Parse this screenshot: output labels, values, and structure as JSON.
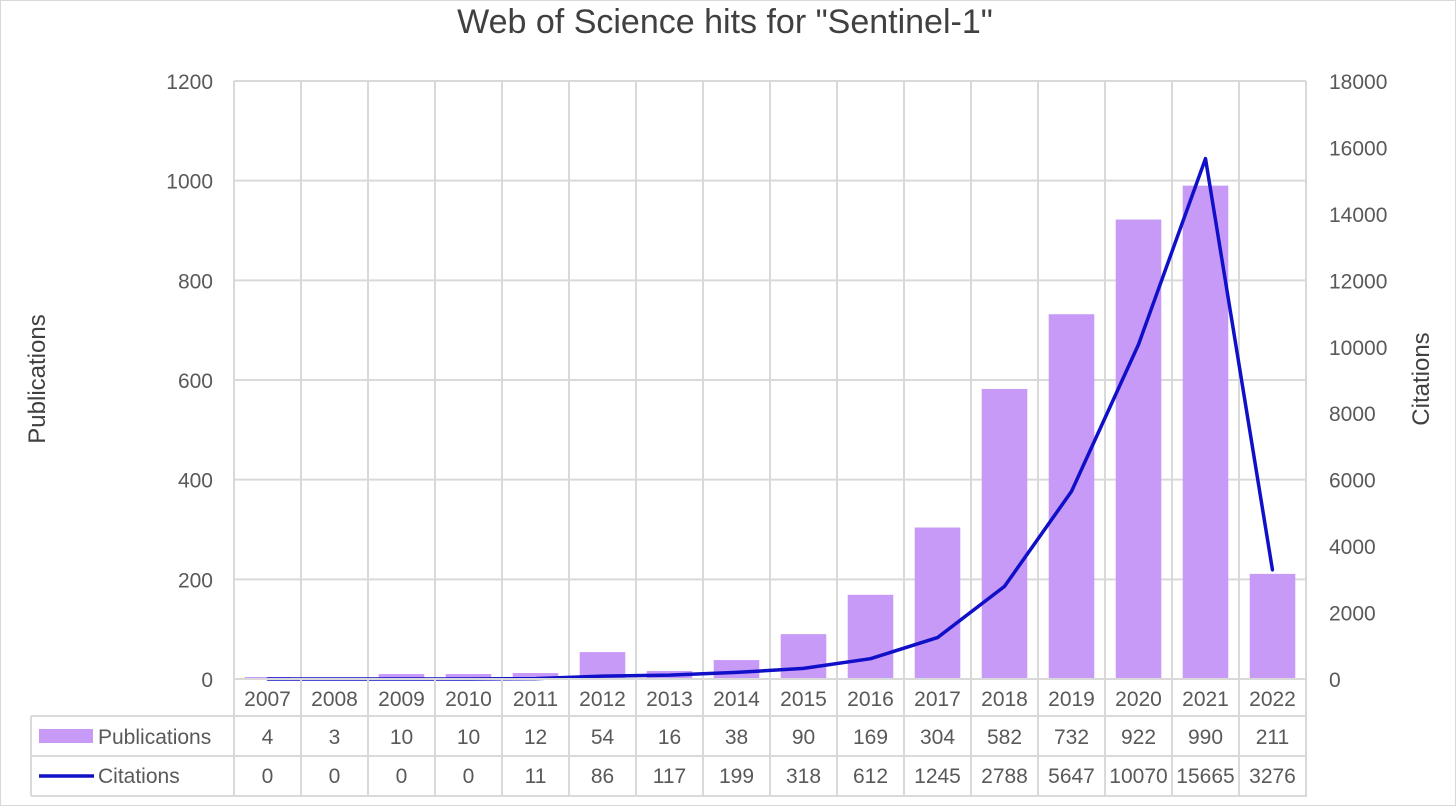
{
  "chart_data": {
    "type": "bar",
    "title": "Web of Science hits for \"Sentinel-1\"",
    "xlabel": "",
    "ylabel": "Publications",
    "y2label": "Citations",
    "ylim": [
      0,
      1200
    ],
    "y2lim": [
      0,
      18000
    ],
    "yticks": [
      "0",
      "200",
      "400",
      "600",
      "800",
      "1000",
      "1200"
    ],
    "y2ticks": [
      "0",
      "2000",
      "4000",
      "6000",
      "8000",
      "10000",
      "12000",
      "14000",
      "16000",
      "18000"
    ],
    "grid": true,
    "legend_placement": "data-table",
    "categories": [
      "2007",
      "2008",
      "2009",
      "2010",
      "2011",
      "2012",
      "2013",
      "2014",
      "2015",
      "2016",
      "2017",
      "2018",
      "2019",
      "2020",
      "2021",
      "2022"
    ],
    "series": [
      {
        "name": "Publications",
        "kind": "bar",
        "axis": "left",
        "color": "#c89af7",
        "values": [
          4,
          3,
          10,
          10,
          12,
          54,
          16,
          38,
          90,
          169,
          304,
          582,
          732,
          922,
          990,
          211
        ],
        "labels": [
          "4",
          "3",
          "10",
          "10",
          "12",
          "54",
          "16",
          "38",
          "90",
          "169",
          "304",
          "582",
          "732",
          "922",
          "990",
          "211"
        ]
      },
      {
        "name": "Citations",
        "kind": "line",
        "axis": "right",
        "color": "#1010c8",
        "values": [
          0,
          0,
          0,
          0,
          11,
          86,
          117,
          199,
          318,
          612,
          1245,
          2788,
          5647,
          10070,
          15665,
          3276
        ],
        "labels": [
          "0",
          "0",
          "0",
          "0",
          "11",
          "86",
          "117",
          "199",
          "318",
          "612",
          "1245",
          "2788",
          "5647",
          "10070",
          "15665",
          "3276"
        ]
      }
    ]
  }
}
